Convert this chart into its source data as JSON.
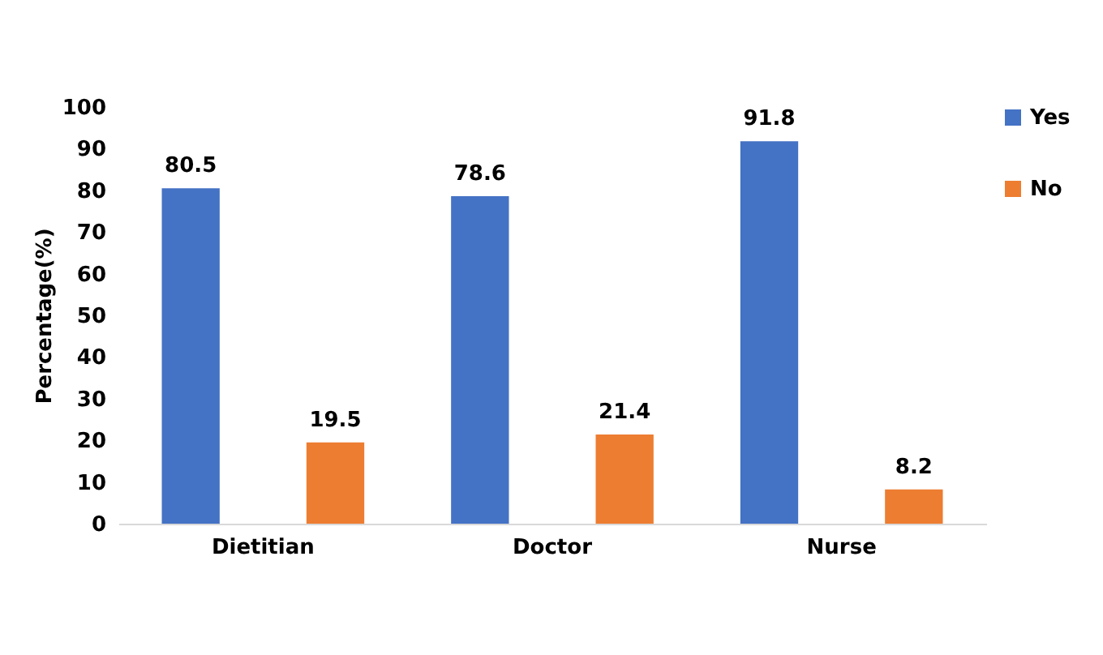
{
  "chart_data": {
    "type": "bar",
    "ylabel": "Percentage(%)",
    "categories": [
      "Dietitian",
      "Doctor",
      "Nurse"
    ],
    "series": [
      {
        "name": "Yes",
        "color": "#4472c4",
        "values": [
          80.5,
          78.6,
          91.8
        ]
      },
      {
        "name": "No",
        "color": "#ed7d31",
        "values": [
          19.5,
          21.4,
          8.2
        ]
      }
    ],
    "ylim": [
      0,
      100
    ],
    "yticks": [
      0,
      10,
      20,
      30,
      40,
      50,
      60,
      70,
      80,
      90,
      100
    ],
    "grid": false,
    "legend": "right",
    "data_labels": true
  }
}
